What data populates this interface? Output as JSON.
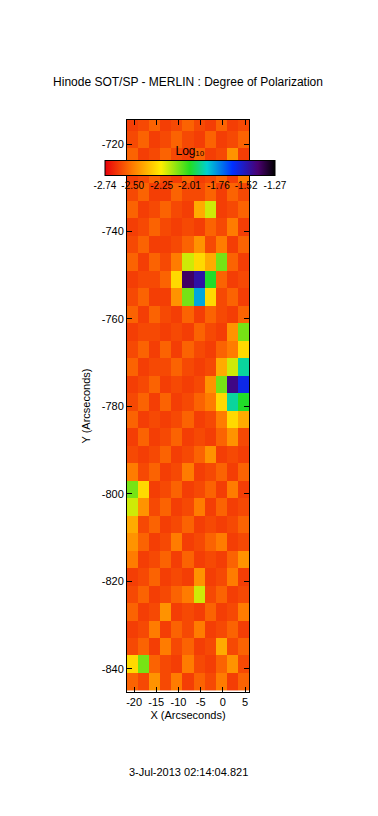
{
  "chart_data": {
    "type": "heatmap",
    "title": "Hinode SOT/SP - MERLIN : Degree of Polarization",
    "xlabel": "X (Arcseconds)",
    "ylabel": "Y (Arcseconds)",
    "annotation": "3-Jul-2013 02:14:04.821",
    "xlim": [
      -21.6,
      5.9
    ],
    "ylim": [
      -845.3,
      -714.5
    ],
    "xticks": [
      -20,
      -15,
      -10,
      -5,
      0,
      5
    ],
    "yticks": [
      -840,
      -820,
      -800,
      -780,
      -760,
      -740,
      -720
    ],
    "x": [
      -20.35,
      -17.85,
      -15.35,
      -12.85,
      -10.35,
      -7.85,
      -5.35,
      -2.85,
      -0.35,
      2.15,
      4.65
    ],
    "y": [
      -843,
      -839,
      -835,
      -831,
      -827,
      -823,
      -819,
      -815,
      -811,
      -807,
      -803,
      -799,
      -795,
      -791,
      -787,
      -783,
      -779,
      -775,
      -771,
      -767,
      -763,
      -759,
      -755,
      -751,
      -747,
      -743,
      -739,
      -735,
      -731,
      -727,
      -723,
      -719,
      -715
    ],
    "z": [
      [
        -2.55,
        -2.6,
        -2.45,
        -2.6,
        -2.5,
        -2.62,
        -2.55,
        -2.6,
        -2.5,
        -2.62,
        -2.55
      ],
      [
        -2.3,
        -2.1,
        -2.55,
        -2.6,
        -2.62,
        -2.5,
        -2.6,
        -2.62,
        -2.55,
        -2.45,
        -2.6
      ],
      [
        -2.6,
        -2.55,
        -2.62,
        -2.5,
        -2.6,
        -2.55,
        -2.62,
        -2.6,
        -2.4,
        -2.6,
        -2.55
      ],
      [
        -2.62,
        -2.6,
        -2.5,
        -2.62,
        -2.55,
        -2.6,
        -2.5,
        -2.62,
        -2.6,
        -2.55,
        -2.62
      ],
      [
        -2.55,
        -2.62,
        -2.6,
        -2.45,
        -2.62,
        -2.6,
        -2.62,
        -2.55,
        -2.62,
        -2.6,
        -2.5
      ],
      [
        -2.6,
        -2.55,
        -2.62,
        -2.6,
        -2.55,
        -2.5,
        -2.2,
        -2.6,
        -2.55,
        -2.62,
        -2.6
      ],
      [
        -2.62,
        -2.6,
        -2.55,
        -2.62,
        -2.6,
        -2.62,
        -2.45,
        -2.62,
        -2.6,
        -2.5,
        -2.62
      ],
      [
        -2.5,
        -2.62,
        -2.6,
        -2.55,
        -2.62,
        -2.55,
        -2.62,
        -2.6,
        -2.62,
        -2.55,
        -2.45
      ],
      [
        -2.45,
        -2.55,
        -2.62,
        -2.6,
        -2.5,
        -2.62,
        -2.6,
        -2.55,
        -2.5,
        -2.62,
        -2.6
      ],
      [
        -2.4,
        -2.6,
        -2.55,
        -2.62,
        -2.6,
        -2.55,
        -2.62,
        -2.6,
        -2.62,
        -2.6,
        -2.55
      ],
      [
        -2.2,
        -2.45,
        -2.6,
        -2.55,
        -2.62,
        -2.6,
        -2.5,
        -2.62,
        -2.55,
        -2.62,
        -2.6
      ],
      [
        -2.1,
        -2.3,
        -2.62,
        -2.6,
        -2.55,
        -2.62,
        -2.6,
        -2.55,
        -2.62,
        -2.5,
        -2.62
      ],
      [
        -2.5,
        -2.6,
        -2.55,
        -2.62,
        -2.6,
        -2.5,
        -2.62,
        -2.6,
        -2.55,
        -2.62,
        -2.55
      ],
      [
        -2.6,
        -2.62,
        -2.6,
        -2.55,
        -2.62,
        -2.6,
        -2.55,
        -2.45,
        -2.62,
        -2.6,
        -2.62
      ],
      [
        -2.62,
        -2.55,
        -2.62,
        -2.6,
        -2.55,
        -2.62,
        -2.6,
        -2.62,
        -2.55,
        -2.45,
        -2.6
      ],
      [
        -2.55,
        -2.62,
        -2.6,
        -2.62,
        -2.6,
        -2.55,
        -2.62,
        -2.6,
        -2.5,
        -2.3,
        -2.4
      ],
      [
        -2.6,
        -2.55,
        -2.62,
        -2.55,
        -2.62,
        -2.6,
        -2.55,
        -2.5,
        -2.3,
        -1.9,
        -2.0
      ],
      [
        -2.62,
        -2.6,
        -2.55,
        -2.62,
        -2.6,
        -2.62,
        -2.6,
        -2.45,
        -2.1,
        -1.45,
        -1.6
      ],
      [
        -2.55,
        -2.62,
        -2.6,
        -2.6,
        -2.55,
        -2.6,
        -2.62,
        -2.6,
        -2.4,
        -2.2,
        -1.9
      ],
      [
        -2.6,
        -2.55,
        -2.62,
        -2.55,
        -2.62,
        -2.55,
        -2.6,
        -2.62,
        -2.55,
        -2.5,
        -2.3
      ],
      [
        -2.62,
        -2.6,
        -2.6,
        -2.62,
        -2.6,
        -2.62,
        -2.55,
        -2.6,
        -2.62,
        -2.45,
        -2.1
      ],
      [
        -2.55,
        -2.62,
        -2.55,
        -2.6,
        -2.62,
        -2.55,
        -2.62,
        -2.55,
        -2.6,
        -2.62,
        -2.55
      ],
      [
        -2.6,
        -2.55,
        -2.62,
        -2.62,
        -2.45,
        -2.1,
        -1.8,
        -2.3,
        -2.6,
        -2.55,
        -2.62
      ],
      [
        -2.62,
        -2.6,
        -2.6,
        -2.55,
        -2.3,
        -1.4,
        -1.5,
        -2.0,
        -2.55,
        -2.62,
        -2.6
      ],
      [
        -2.55,
        -2.62,
        -2.55,
        -2.6,
        -2.5,
        -2.2,
        -2.3,
        -2.4,
        -2.1,
        -2.55,
        -2.62
      ],
      [
        -2.6,
        -2.55,
        -2.62,
        -2.62,
        -2.6,
        -2.55,
        -2.45,
        -2.6,
        -2.5,
        -2.62,
        -2.55
      ],
      [
        -2.62,
        -2.6,
        -2.55,
        -2.6,
        -2.62,
        -2.6,
        -2.62,
        -2.55,
        -2.6,
        -2.5,
        -2.62
      ],
      [
        -2.55,
        -2.62,
        -2.6,
        -2.55,
        -2.6,
        -2.62,
        -2.4,
        -2.2,
        -2.62,
        -2.6,
        -2.55
      ],
      [
        -2.6,
        -2.55,
        -2.62,
        -2.62,
        -2.55,
        -2.6,
        -2.6,
        -2.55,
        -2.62,
        -2.55,
        -2.6
      ],
      [
        -2.62,
        -2.6,
        -2.55,
        -2.6,
        -2.62,
        -2.55,
        -2.62,
        -2.6,
        -2.55,
        -2.62,
        -2.5
      ],
      [
        -2.55,
        -2.62,
        -2.6,
        -2.55,
        -2.6,
        -2.62,
        -2.55,
        -2.62,
        -2.6,
        -2.45,
        -2.62
      ],
      [
        -2.6,
        -2.55,
        -2.62,
        -2.6,
        -2.55,
        -2.6,
        -2.62,
        -2.55,
        -2.62,
        -2.6,
        -2.55
      ],
      [
        -2.62,
        -2.6,
        -2.55,
        -2.62,
        -2.6,
        -2.55,
        -2.6,
        -2.62,
        -2.55,
        -2.62,
        -2.6
      ]
    ],
    "colorbar": {
      "title": "Log₁₀",
      "range": [
        -2.74,
        -1.27
      ],
      "ticks": [
        -2.74,
        -2.5,
        -2.25,
        -2.01,
        -1.76,
        -1.52,
        -1.27
      ]
    }
  }
}
